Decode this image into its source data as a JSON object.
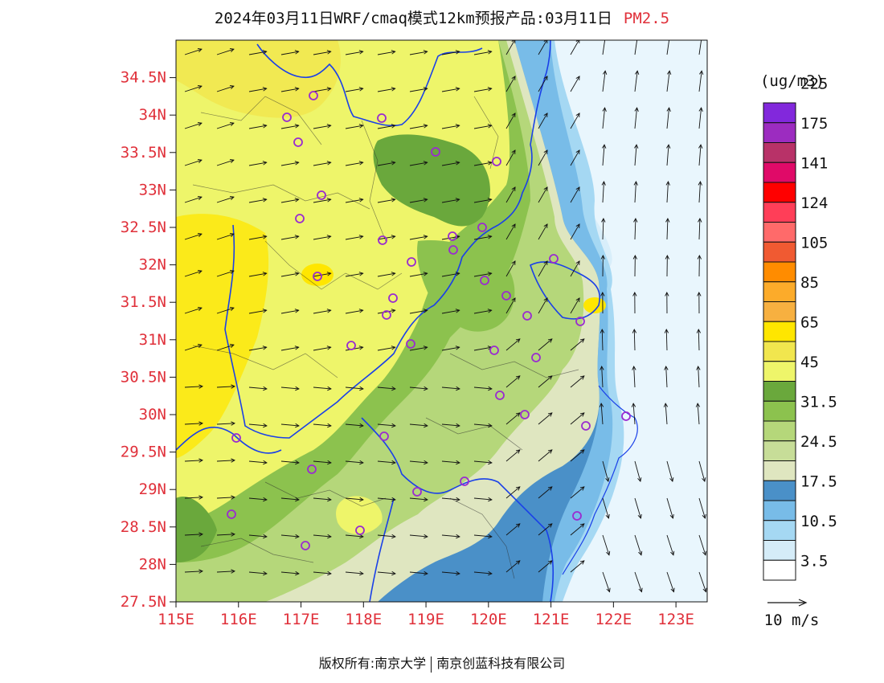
{
  "header": {
    "title": "2024年03月11日WRF/cmaq模式12km预报产品:03月11日",
    "pollutant": "PM2.5"
  },
  "map": {
    "lat_labels": [
      "34.5N",
      "34N",
      "33.5N",
      "33N",
      "32.5N",
      "32N",
      "31.5N",
      "31N",
      "30.5N",
      "30N",
      "29.5N",
      "29N",
      "28.5N",
      "28N",
      "27.5N"
    ],
    "lon_labels": [
      "115E",
      "116E",
      "117E",
      "118E",
      "119E",
      "120E",
      "121E",
      "122E",
      "123E"
    ],
    "lon_range": [
      115,
      123.5
    ],
    "lat_range": [
      27.5,
      35
    ],
    "colors": {
      "ocean": "#d8eefa",
      "land_base": "#eef56a",
      "boundary": "#1a40e8",
      "station": "#9a2bd0"
    }
  },
  "colorbar": {
    "unit": "(ug/m3)",
    "colors": [
      "#ffffff",
      "#d5ecf8",
      "#a5d8f3",
      "#78bce8",
      "#4a90c8",
      "#dfe6c0",
      "#c7dd98",
      "#b5d77a",
      "#8cc24e",
      "#6aa83c",
      "#eef56a",
      "#f1e64e",
      "#ffe600",
      "#f7b040",
      "#fcab2a",
      "#ff8c00",
      "#f05a32",
      "#ff6a6a",
      "#ff3e58",
      "#ff0000",
      "#e00a68",
      "#b83268",
      "#9c2cc0",
      "#8228dc"
    ],
    "labels": [
      "3.5",
      "10.5",
      "17.5",
      "24.5",
      "31.5",
      "45",
      "65",
      "85",
      "105",
      "124",
      "141",
      "175",
      "225"
    ]
  },
  "wind_legend": {
    "label": "10 m/s"
  },
  "footer": {
    "left": "版权所有:南京大学",
    "right": "南京创蓝科技有限公司"
  }
}
